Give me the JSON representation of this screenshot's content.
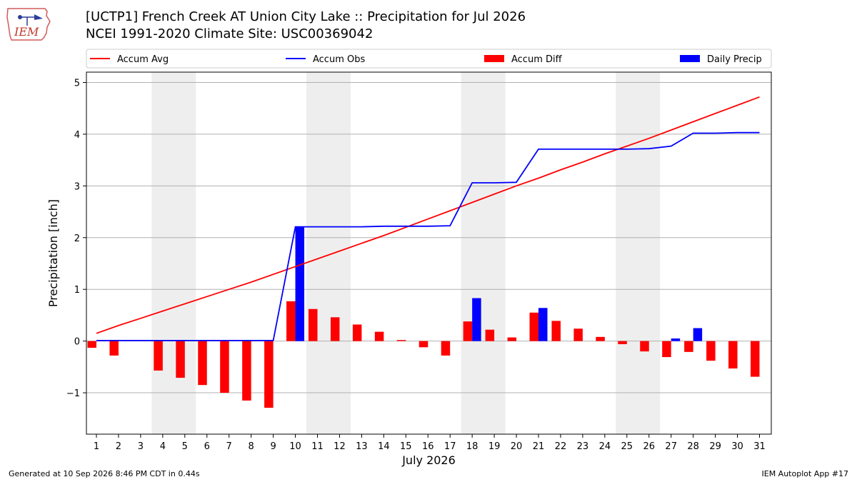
{
  "header": {
    "title_line1": "[UCTP1] French Creek  AT Union City Lake :: Precipitation for Jul 2026",
    "title_line2": "NCEI 1991-2020 Climate Site: USC00369042",
    "logo_text": "IEM"
  },
  "footer": {
    "generated": "Generated at 10 Sep 2026 8:46 PM CDT in 0.44s",
    "app": "IEM Autoplot App #17"
  },
  "colors": {
    "avg": "#ff0000",
    "obs": "#0000ff",
    "diff": "#ff0000",
    "daily": "#0000ff",
    "weekend": "#eeeeee",
    "grid": "#b0b0b0"
  },
  "chart_data": {
    "type": "bar",
    "xlabel": "July 2026",
    "ylabel": "Precipitation [inch]",
    "ylim": [
      -1.8,
      5.2
    ],
    "yticks": [
      -1,
      0,
      1,
      2,
      3,
      4,
      5
    ],
    "ytick_labels": [
      "−1",
      "0",
      "1",
      "2",
      "3",
      "4",
      "5"
    ],
    "grid": true,
    "legend_placement": "top",
    "weekend_days": [
      [
        4,
        5
      ],
      [
        11,
        12
      ],
      [
        18,
        19
      ],
      [
        25,
        26
      ]
    ],
    "days": [
      1,
      2,
      3,
      4,
      5,
      6,
      7,
      8,
      9,
      10,
      11,
      12,
      13,
      14,
      15,
      16,
      17,
      18,
      19,
      20,
      21,
      22,
      23,
      24,
      25,
      26,
      27,
      28,
      29,
      30,
      31
    ],
    "series": [
      {
        "name": "Accum Avg",
        "kind": "line",
        "values": [
          0.15,
          0.3,
          0.44,
          0.58,
          0.72,
          0.86,
          1.0,
          1.14,
          1.29,
          1.44,
          1.59,
          1.74,
          1.89,
          2.04,
          2.2,
          2.36,
          2.52,
          2.68,
          2.84,
          3.0,
          3.15,
          3.31,
          3.46,
          3.62,
          3.77,
          3.92,
          4.08,
          4.24,
          4.4,
          4.56,
          4.72
        ]
      },
      {
        "name": "Accum Obs",
        "kind": "line",
        "values": [
          0.01,
          0.01,
          null,
          0.01,
          0.01,
          0.01,
          0.01,
          0.01,
          0.01,
          2.21,
          2.21,
          2.21,
          2.21,
          2.22,
          2.22,
          2.22,
          2.23,
          3.06,
          3.06,
          3.07,
          3.71,
          3.71,
          3.71,
          3.71,
          3.71,
          3.72,
          3.77,
          4.02,
          4.02,
          4.03,
          4.03
        ]
      },
      {
        "name": "Accum Diff",
        "kind": "bar",
        "values": [
          -0.13,
          -0.28,
          null,
          -0.57,
          -0.71,
          -0.85,
          -1.0,
          -1.15,
          -1.29,
          0.77,
          0.62,
          0.46,
          0.32,
          0.18,
          0.02,
          -0.12,
          -0.28,
          0.38,
          0.22,
          0.07,
          0.55,
          0.39,
          0.24,
          0.08,
          -0.06,
          -0.2,
          -0.31,
          -0.21,
          -0.38,
          -0.53,
          -0.69
        ]
      },
      {
        "name": "Daily Precip",
        "kind": "bar",
        "values": [
          0.01,
          0,
          null,
          0,
          0,
          0,
          0,
          0,
          0,
          2.21,
          0,
          0,
          0,
          0,
          0,
          0,
          0,
          0.83,
          0,
          0,
          0.64,
          0,
          0,
          0,
          0,
          0,
          0.05,
          0.25,
          0,
          0,
          0
        ]
      }
    ]
  }
}
